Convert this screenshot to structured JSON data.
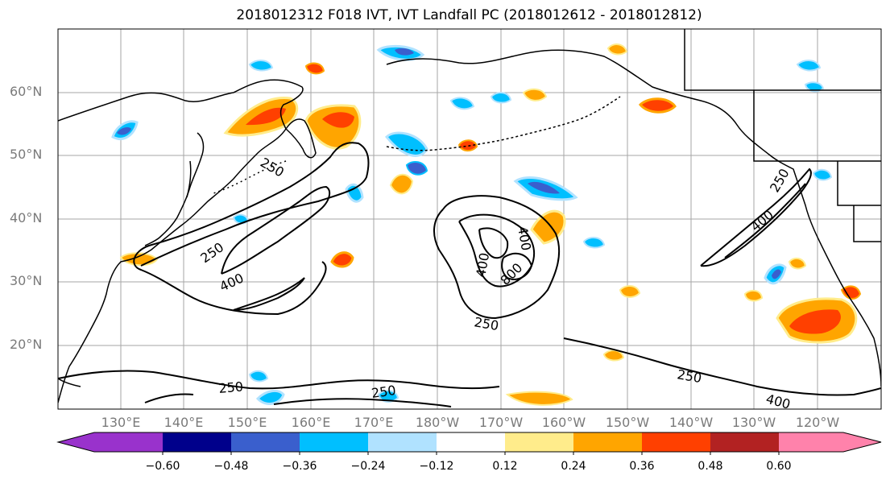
{
  "title": "2018012312 F018 IVT, IVT Landfall PC (2018012612 - 2018012812)",
  "lat_labels": [
    "60°N",
    "50°N",
    "40°N",
    "30°N",
    "20°N"
  ],
  "lon_labels": [
    "130°E",
    "140°E",
    "150°E",
    "160°E",
    "170°E",
    "180°W",
    "170°W",
    "160°W",
    "150°W",
    "140°W",
    "130°W",
    "120°W"
  ],
  "contour_labels": [
    "250",
    "400",
    "250",
    "400",
    "800",
    "250",
    "250",
    "400",
    "400",
    "250",
    "250",
    "250",
    "400"
  ],
  "colorbar": {
    "ticks": [
      "−0.60",
      "−0.48",
      "−0.36",
      "−0.24",
      "−0.12",
      "0.12",
      "0.24",
      "0.36",
      "0.48",
      "0.60"
    ],
    "colors": [
      "#9932cc",
      "#00008b",
      "#3a5fcd",
      "#00bfff",
      "#b0e2ff",
      "#ffffff",
      "#ffec8b",
      "#ffa500",
      "#ff4000",
      "#b22222",
      "#ff82ab"
    ]
  }
}
